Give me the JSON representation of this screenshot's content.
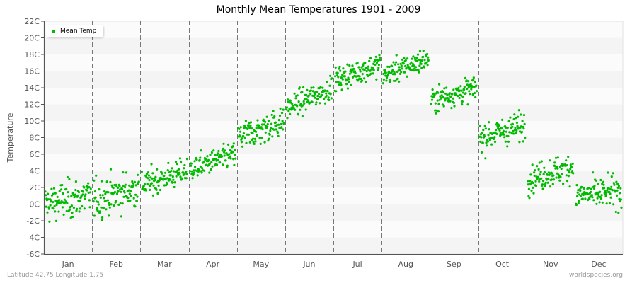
{
  "title": "Monthly Mean Temperatures 1901 - 2009",
  "footer": {
    "location": "Latitude 42.75 Longitude 1.75",
    "source": "worldspecies.org"
  },
  "legend": {
    "label": "Mean Temp",
    "color": "#00bb00"
  },
  "chart_data": {
    "type": "scatter",
    "title": "Monthly Mean Temperatures 1901 - 2009",
    "xlabel": "",
    "ylabel": "Temperature",
    "categories": [
      "Jan",
      "Feb",
      "Mar",
      "Apr",
      "May",
      "Jun",
      "Jul",
      "Aug",
      "Sep",
      "Oct",
      "Nov",
      "Dec"
    ],
    "yticks": [
      "-6C",
      "-4C",
      "-2C",
      "0C",
      "2C",
      "4C",
      "6C",
      "8C",
      "10C",
      "12C",
      "14C",
      "16C",
      "18C",
      "20C",
      "22C"
    ],
    "ylim": [
      -6,
      22
    ],
    "grid": {
      "horizontal_bands": true,
      "vertical_dashed_month_separators": true
    },
    "legend_position": "top-left",
    "series": [
      {
        "name": "Mean Temp",
        "color": "#00bb00",
        "years": "1901-2009",
        "points_per_month": 109,
        "monthly_summary": [
          {
            "month": "Jan",
            "start_mean": 0.0,
            "end_mean": 1.0,
            "min": -4.5,
            "max": 3.5,
            "spread": 1.6
          },
          {
            "month": "Feb",
            "start_mean": 0.5,
            "end_mean": 2.0,
            "min": -3.5,
            "max": 4.8,
            "spread": 1.6
          },
          {
            "month": "Mar",
            "start_mean": 2.3,
            "end_mean": 4.0,
            "min": -0.3,
            "max": 5.5,
            "spread": 1.1
          },
          {
            "month": "Apr",
            "start_mean": 4.2,
            "end_mean": 6.0,
            "min": 2.0,
            "max": 7.6,
            "spread": 1.0
          },
          {
            "month": "May",
            "start_mean": 8.0,
            "end_mean": 10.0,
            "min": 5.3,
            "max": 11.5,
            "spread": 1.3
          },
          {
            "month": "Jun",
            "start_mean": 11.5,
            "end_mean": 14.0,
            "min": 9.8,
            "max": 16.0,
            "spread": 1.0
          },
          {
            "month": "Jul",
            "start_mean": 15.0,
            "end_mean": 16.8,
            "min": 13.2,
            "max": 20.3,
            "spread": 1.0
          },
          {
            "month": "Aug",
            "start_mean": 15.5,
            "end_mean": 17.5,
            "min": 13.8,
            "max": 19.3,
            "spread": 1.0
          },
          {
            "month": "Sep",
            "start_mean": 12.5,
            "end_mean": 14.0,
            "min": 10.3,
            "max": 16.0,
            "spread": 1.0
          },
          {
            "month": "Oct",
            "start_mean": 8.0,
            "end_mean": 9.5,
            "min": 5.0,
            "max": 12.0,
            "spread": 1.2
          },
          {
            "month": "Nov",
            "start_mean": 3.0,
            "end_mean": 4.5,
            "min": 0.5,
            "max": 6.8,
            "spread": 1.2
          },
          {
            "month": "Dec",
            "start_mean": 1.0,
            "end_mean": 1.5,
            "min": -2.2,
            "max": 4.5,
            "spread": 1.3
          }
        ]
      }
    ]
  }
}
